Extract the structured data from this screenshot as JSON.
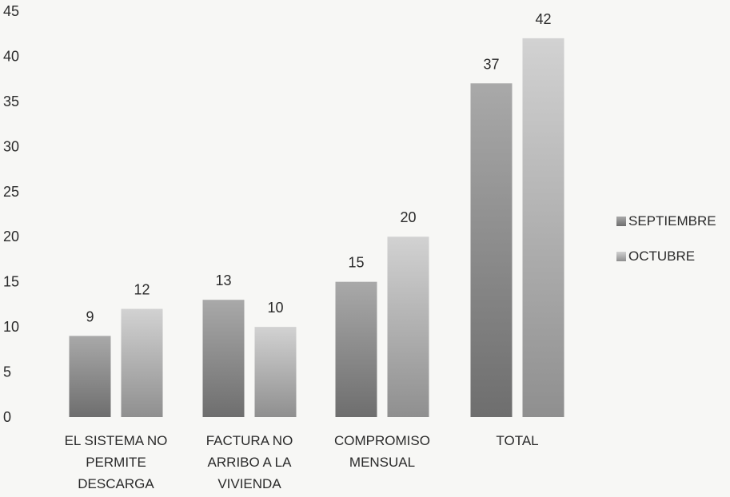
{
  "chart_data": {
    "type": "bar",
    "title": "",
    "xlabel": "",
    "ylabel": "",
    "ylim": [
      0,
      45
    ],
    "yticks": [
      0,
      5,
      10,
      15,
      20,
      25,
      30,
      35,
      40,
      45
    ],
    "grid": false,
    "legend_position": "right",
    "categories": [
      [
        "EL SISTEMA NO",
        "PERMITE",
        "DESCARGA"
      ],
      [
        "FACTURA NO",
        "ARRIBO A LA",
        "VIVIENDA"
      ],
      [
        "COMPROMISO",
        "MENSUAL"
      ],
      [
        "TOTAL"
      ]
    ],
    "series": [
      {
        "name": "SEPTIEMBRE",
        "values": [
          9,
          13,
          15,
          37
        ],
        "color": "#8a8a8a"
      },
      {
        "name": "OCTUBRE",
        "values": [
          12,
          10,
          20,
          42
        ],
        "color": "#bdbdbd"
      }
    ]
  }
}
